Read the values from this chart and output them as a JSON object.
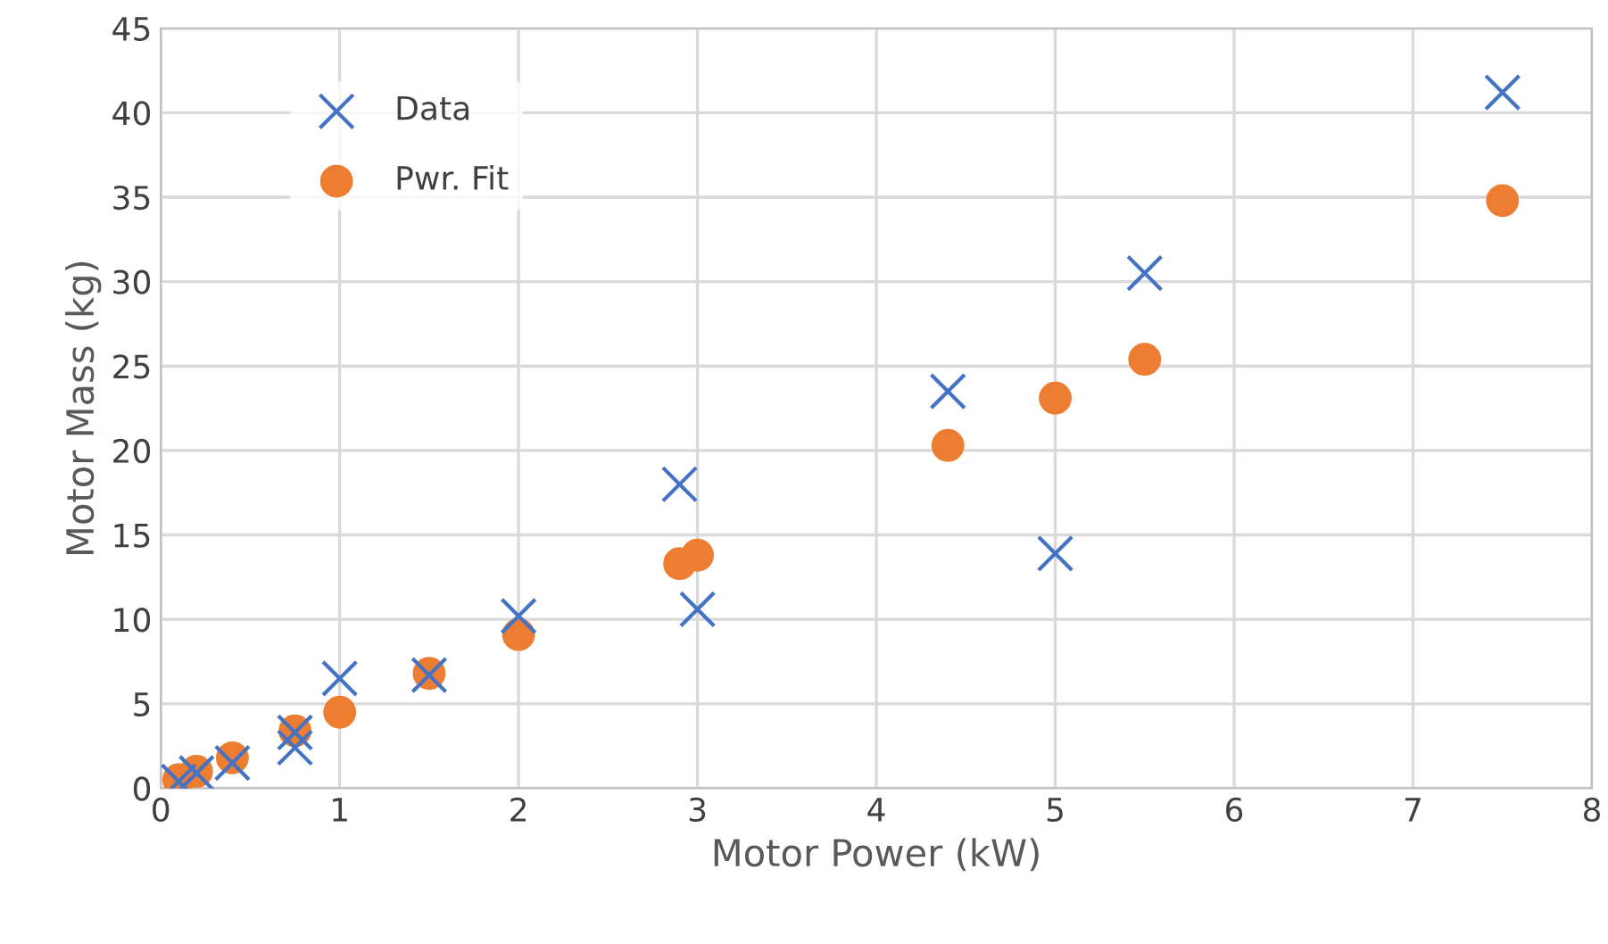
{
  "chart_data": {
    "type": "scatter",
    "xlabel": "Motor Power (kW)",
    "ylabel": "Motor Mass (kg)",
    "xlim": [
      0,
      8
    ],
    "xticks": [
      0,
      1,
      2,
      3,
      4,
      5,
      6,
      7,
      8
    ],
    "ylim": [
      0,
      45
    ],
    "yticks": [
      0,
      5,
      10,
      15,
      20,
      25,
      30,
      35,
      40,
      45
    ],
    "grid": true,
    "legend": "top left",
    "series": [
      {
        "name": "Data",
        "color": "#4472c4",
        "marker": "cross",
        "x": [
          0.1,
          0.2,
          0.4,
          0.75,
          0.75,
          1,
          1.5,
          2,
          2.9,
          3,
          4.4,
          5,
          5.5,
          7.5
        ],
        "values": [
          0.4,
          0.9,
          1.5,
          3.3,
          2.4,
          6.5,
          6.7,
          10.2,
          18,
          10.6,
          23.5,
          13.9,
          30.5,
          41.2
        ]
      },
      {
        "name": "Pwr. Fit",
        "color": "#ed7d31",
        "marker": "circle",
        "x": [
          0.1,
          0.2,
          0.4,
          0.75,
          1,
          1.5,
          2,
          2.9,
          3,
          4.4,
          5,
          5.5,
          7.5
        ],
        "values": [
          0.5,
          1,
          1.8,
          3.4,
          4.5,
          6.8,
          9.1,
          13.3,
          13.8,
          20.3,
          23.1,
          25.4,
          34.8
        ]
      }
    ]
  }
}
